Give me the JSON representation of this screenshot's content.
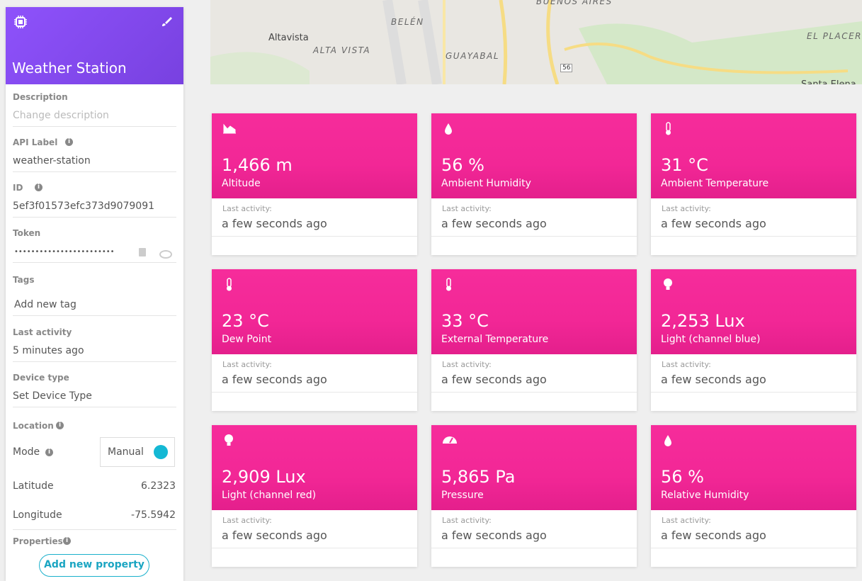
{
  "sidebar": {
    "title": "Weather Station",
    "fields": [
      {
        "label": "Description",
        "value": "Change description"
      },
      {
        "label": "API Label",
        "value": "weather-station"
      },
      {
        "label": "ID",
        "value": "5ef3f01573efc373d9079091"
      },
      {
        "label": "Token",
        "value": "••••••••••••••••••••••••"
      },
      {
        "label": "Tags",
        "value": "Add new tag"
      },
      {
        "label": "Last activity",
        "value": "5 minutes ago"
      },
      {
        "label": "Device type",
        "value": "Set Device Type"
      }
    ],
    "location": {
      "label": "Location",
      "mode_label": "Mode",
      "mode": "Manual",
      "latitude_label": "Latitude",
      "latitude": "6.2323",
      "longitude_label": "Longitude",
      "longitude": "-75.5942"
    },
    "properties": {
      "label": "Properties",
      "button": "Add new property"
    }
  },
  "map": {
    "labels": [
      "BUENOS AIRES",
      "BELÉN",
      "Altavista",
      "ALTA VISTA",
      "GUAYABAL",
      "EL PLACER",
      "56",
      "Santa Elena"
    ]
  },
  "cards": [
    {
      "value": "1,466 m",
      "name": "Altitude",
      "activity_label": "Last activity:",
      "activity": "a few seconds ago"
    },
    {
      "value": "56 %",
      "name": "Ambient Humidity",
      "activity_label": "Last activity:",
      "activity": "a few seconds ago"
    },
    {
      "value": "31 °C",
      "name": "Ambient Temperature",
      "activity_label": "Last activity:",
      "activity": "a few seconds ago"
    },
    {
      "value": "23 °C",
      "name": "Dew Point",
      "activity_label": "Last activity:",
      "activity": "a few seconds ago"
    },
    {
      "value": "33 °C",
      "name": "External Temperature",
      "activity_label": "Last activity:",
      "activity": "a few seconds ago"
    },
    {
      "value": "2,253 Lux",
      "name": "Light (channel blue)",
      "activity_label": "Last activity:",
      "activity": "a few seconds ago"
    },
    {
      "value": "2,909 Lux",
      "name": "Light (channel red)",
      "activity_label": "Last activity:",
      "activity": "a few seconds ago"
    },
    {
      "value": "5,865 Pa",
      "name": "Pressure",
      "activity_label": "Last activity:",
      "activity": "a few seconds ago"
    },
    {
      "value": "56 %",
      "name": "Relative Humidity",
      "activity_label": "Last activity:",
      "activity": "a few seconds ago"
    }
  ]
}
